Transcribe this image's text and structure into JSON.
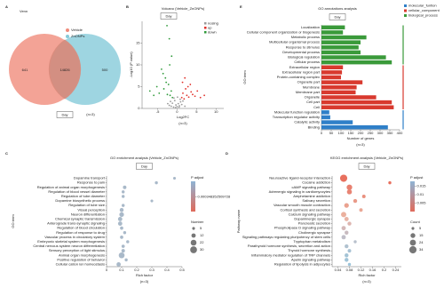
{
  "chart_data": [
    {
      "type": "venn",
      "panel": "A",
      "title": "Venn",
      "sets": [
        {
          "name": "Vehicle",
          "color": "#f08c7c",
          "value": 641
        },
        {
          "name": "ZnONPs",
          "color": "#86cbd9",
          "value": 500
        }
      ],
      "overlap": 14826,
      "label": "Day",
      "note": "(n=3)"
    },
    {
      "type": "scatter",
      "panel": "B",
      "title": "Volcano (Vehicle_ZnONPs)",
      "label": "Day",
      "note": "(n=3)",
      "xlabel": "Log2FC",
      "ylabel": "-Log10 (P value)",
      "xlim": [
        -9,
        12
      ],
      "ylim": [
        0,
        20
      ],
      "xticks": [
        -5,
        0,
        5,
        10
      ],
      "yticks": [
        0,
        5,
        10,
        15
      ],
      "series": [
        {
          "name": "nosing",
          "color": "#9a9a9a",
          "x": [
            -1.5,
            -1.2,
            -0.9,
            -0.6,
            -0.3,
            0,
            0.3,
            0.6,
            0.9,
            1.2,
            -2,
            2,
            -0.8,
            0.8,
            -1.7,
            1.5,
            0.1,
            -0.4,
            0.5,
            -2.4
          ],
          "values": [
            0.5,
            1.2,
            0.3,
            1.8,
            0.8,
            0.4,
            1.1,
            0.6,
            1.5,
            0.9,
            0.7,
            0.5,
            2.4,
            2.1,
            1.6,
            1.7,
            2.6,
            0.2,
            0.3,
            1.1
          ]
        },
        {
          "name": "up",
          "color": "#e0302a",
          "x": [
            1.2,
            1.5,
            1.8,
            2.2,
            2.5,
            3,
            3.4,
            4,
            4.6,
            5.2,
            6,
            7,
            1.4,
            2,
            2.8,
            3.6
          ],
          "values": [
            2.5,
            3.5,
            2.2,
            4.5,
            3,
            2.6,
            5.5,
            3.2,
            2.8,
            4,
            2.5,
            3,
            6,
            7,
            5,
            3.8
          ]
        },
        {
          "name": "down",
          "color": "#2f9a3a",
          "x": [
            -1.2,
            -1.5,
            -1.8,
            -2.2,
            -2.5,
            -3,
            -3.4,
            -4,
            -4.6,
            -5.2,
            -6,
            -7,
            -1.4,
            -2,
            -2.8,
            -3.6,
            -2.6,
            -1.9
          ],
          "values": [
            2.5,
            4,
            3,
            5.5,
            3.2,
            7,
            4.5,
            9,
            3.5,
            5,
            3,
            4,
            12,
            16,
            6,
            8,
            19,
            10
          ]
        }
      ]
    },
    {
      "type": "dot",
      "panel": "C",
      "title": "GO enrichment analysis (Vehicle_ZnONPs)",
      "label": "Day",
      "note": "(n=3)",
      "xlabel": "Rich factor",
      "ylabel": "GO term",
      "xlim": [
        0,
        0.5
      ],
      "xticks": [
        0,
        0.1,
        0.2,
        0.3,
        0.4,
        0.5
      ],
      "categories": [
        "Dopamine transport",
        "Response to pain",
        "Regulation of animal organ morphogenesis",
        "Regulation of blood vessel diameter",
        "Regulation of tube diameter",
        "Dopamine biosynthetic process",
        "Regulation of tube size",
        "Visual perception",
        "Neuron differentiation",
        "Chemical synaptic transmission",
        "Anterograde trans-synaptic signaling",
        "Regulation of blood circulation",
        "Regulation of response to drug",
        "Vascular process in circulatory system",
        "Embryonic skeletal system morphogenesis",
        "Central nervous system neuron differentiation",
        "Sensory perception of light stimulus",
        "Animal organ morphogenesis",
        "Positive regulation of behavior",
        "Cellular cation ion homeostasis"
      ],
      "values": [
        0.45,
        0.33,
        0.12,
        0.11,
        0.11,
        0.3,
        0.11,
        0.1,
        0.1,
        0.09,
        0.09,
        0.1,
        0.12,
        0.1,
        0.14,
        0.11,
        0.11,
        0.1,
        0.13,
        0.08
      ],
      "sizes": [
        5,
        6,
        8,
        6,
        6,
        5,
        6,
        10,
        14,
        12,
        12,
        7,
        6,
        7,
        6,
        7,
        8,
        22,
        6,
        12
      ],
      "color": "#a9b9c9",
      "colorbar": {
        "title": "P adjust",
        "low": "#e06a5a",
        "high": "#8fb4d4",
        "clim": [
          0.0003,
          0.0004
        ],
        "ticks": [
          0.000348352509728
        ]
      },
      "size_legend": {
        "title": "Number",
        "values": [
          5,
          12,
          22,
          30
        ]
      }
    },
    {
      "type": "dot",
      "panel": "D",
      "title": "KEGG enrichment analysis (Vehicle_ZnONPs)",
      "label": "Day",
      "note": "(n=3)",
      "xlabel": "Rich factor",
      "ylabel": "Pathway name",
      "xlim": [
        0.02,
        0.26
      ],
      "xticks": [
        0.04,
        0.08,
        0.12,
        0.16,
        0.2,
        0.24
      ],
      "categories": [
        "Neuroactive ligand-receptor interaction",
        "Cocaine addiction",
        "cAMP signaling pathway",
        "Adrenergic signaling in cardiomyocytes",
        "Amphetamine addiction",
        "Salivary secretion",
        "Vascular smooth muscle contraction",
        "Cortisol synthesis and secretion",
        "Calcium signaling pathway",
        "Dopaminergic synapse",
        "Pancreatic secretion",
        "Phospholipase D signaling pathway",
        "Cholinergic synapse",
        "Signaling pathways regulating pluripotency of stem cells",
        "Tryptophan metabolism",
        "Parathyroid hormone synthesis, secretion and action",
        "Thyroid hormone synthesis",
        "Inflammatory mediator regulation of TRP channels",
        "Apelin signaling pathway",
        "Regulation of lipolysis in adipocytes"
      ],
      "values": [
        0.06,
        0.22,
        0.08,
        0.08,
        0.13,
        0.1,
        0.07,
        0.12,
        0.06,
        0.07,
        0.08,
        0.06,
        0.07,
        0.06,
        0.1,
        0.07,
        0.08,
        0.07,
        0.07,
        0.08
      ],
      "sizes": [
        34,
        6,
        20,
        16,
        8,
        10,
        14,
        8,
        18,
        12,
        10,
        12,
        10,
        12,
        6,
        10,
        8,
        10,
        10,
        6
      ],
      "colors": [
        "#e8705e",
        "#e8705e",
        "#e88070",
        "#e88474",
        "#e9907e",
        "#e99a88",
        "#eaa290",
        "#eaa896",
        "#ebb09e",
        "#e8b4a6",
        "#ddb6b0",
        "#d4b8b8",
        "#c9bbc0",
        "#c0bec8",
        "#b8c0cc",
        "#b0c2d0",
        "#a8c2d4",
        "#a4c4d6",
        "#a0c4d8",
        "#9cc4da"
      ],
      "colorbar": {
        "title": "P adjust",
        "low": "#e06a5a",
        "high": "#8fb4d4",
        "clim": [
          0,
          0.018
        ],
        "ticks": [
          0.005,
          0.01,
          0.015
        ]
      },
      "size_legend": {
        "title": "Count",
        "values": [
          5,
          15,
          24,
          34
        ]
      }
    },
    {
      "type": "barh",
      "panel": "E",
      "title": "GO annotations analysis",
      "label": "Day",
      "note": "(n=3)",
      "xlabel": "Number of genes",
      "ylabel": "GO term",
      "xlim": [
        0,
        400
      ],
      "xticks": [
        0,
        50,
        100,
        150,
        200,
        250,
        300,
        350,
        400
      ],
      "categories": [
        "Localization",
        "Cellular component organization or biogenesis",
        "Metabolic process",
        "Multicellular organismal process",
        "Response to stimulus",
        "Developmental process",
        "Biological regulation",
        "Cellular process",
        "Extracellular region",
        "Extracellular region part",
        "Protein-containing complex",
        "Organelle part",
        "Membrane",
        "Membrane part",
        "Organelle",
        "Cell part",
        "Cell",
        "Molecular function regulation",
        "Transcription regulator activity",
        "Catalytic activity",
        "Binding"
      ],
      "series": [
        {
          "name": "molecular_funtion",
          "color": "#2f7fc8",
          "values": [
            null,
            null,
            null,
            null,
            null,
            null,
            null,
            null,
            null,
            null,
            null,
            null,
            null,
            null,
            null,
            null,
            null,
            40,
            45,
            160,
            340
          ]
        },
        {
          "name": "cellular_component",
          "color": "#d8392e",
          "values": [
            null,
            null,
            null,
            null,
            null,
            null,
            null,
            null,
            110,
            105,
            100,
            210,
            180,
            175,
            280,
            360,
            370,
            null,
            null,
            null,
            null
          ]
        },
        {
          "name": "biological_process",
          "color": "#3a9a3a",
          "values": [
            120,
            110,
            230,
            200,
            190,
            200,
            330,
            360,
            null,
            null,
            null,
            null,
            null,
            null,
            null,
            null,
            null,
            null,
            null,
            null,
            null
          ]
        }
      ]
    }
  ]
}
